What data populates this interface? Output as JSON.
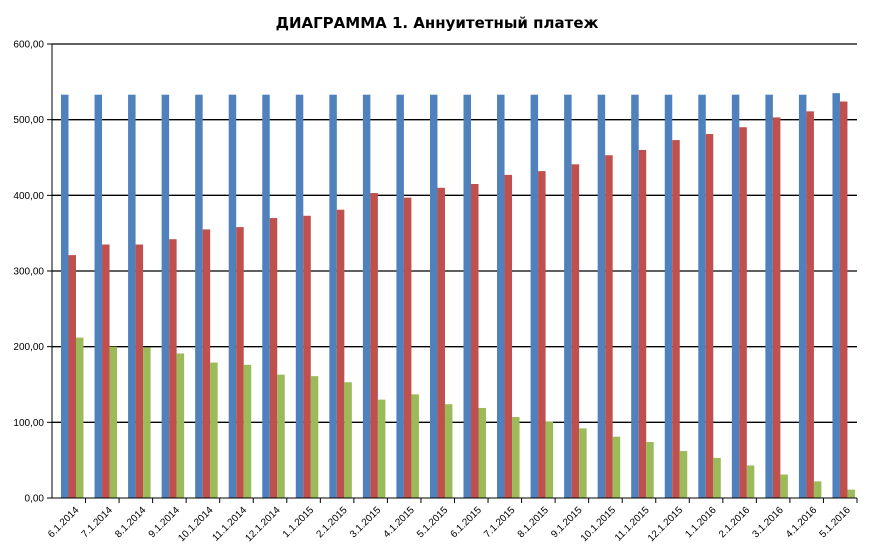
{
  "chart_data": {
    "type": "bar",
    "title": "ДИАГРАММА 1. Аннуитетный платеж",
    "xlabel": "",
    "ylabel": "",
    "ylim": [
      0,
      600
    ],
    "yticks": [
      "0,00",
      "100,00",
      "200,00",
      "300,00",
      "400,00",
      "500,00",
      "600,00"
    ],
    "grid": true,
    "legend": "none",
    "categories": [
      "6.1.2014",
      "7.1.2014",
      "8.1.2014",
      "9.1.2014",
      "10.1.2014",
      "11.1.2014",
      "12.1.2014",
      "1.1.2015",
      "2.1.2015",
      "3.1.2015",
      "4.1.2015",
      "5.1.2015",
      "6.1.2015",
      "7.1.2015",
      "8.1.2015",
      "9.1.2015",
      "10.1.2015",
      "11.1.2015",
      "12.1.2015",
      "1.1.2016",
      "2.1.2016",
      "3.1.2016",
      "4.1.2016",
      "5.1.2016"
    ],
    "series": [
      {
        "color": "#4F81BD",
        "values": [
          533,
          533,
          533,
          533,
          533,
          533,
          533,
          533,
          533,
          533,
          533,
          533,
          533,
          533,
          533,
          533,
          533,
          533,
          533,
          533,
          533,
          533,
          533,
          535
        ]
      },
      {
        "color": "#C0504D",
        "values": [
          321,
          335,
          335,
          342,
          355,
          358,
          370,
          373,
          381,
          403,
          397,
          410,
          415,
          427,
          432,
          441,
          453,
          460,
          473,
          481,
          490,
          503,
          511,
          524
        ]
      },
      {
        "color": "#9BBB59",
        "values": [
          212,
          200,
          199,
          191,
          179,
          176,
          163,
          161,
          153,
          130,
          137,
          124,
          119,
          107,
          101,
          92,
          81,
          74,
          62,
          53,
          43,
          31,
          22,
          11
        ]
      }
    ]
  }
}
